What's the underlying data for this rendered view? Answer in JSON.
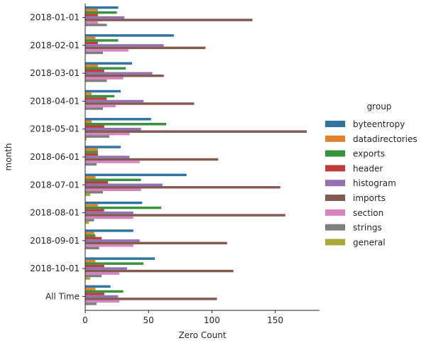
{
  "chart_data": {
    "type": "bar",
    "orientation": "horizontal",
    "title": "",
    "xlabel": "Zero Count",
    "ylabel": "month",
    "xlim": [
      0,
      185
    ],
    "xticks": [
      0,
      50,
      100,
      150
    ],
    "grid": false,
    "legend_title": "group",
    "legend_position": "right",
    "categories": [
      "2018-01-01",
      "2018-02-01",
      "2018-03-01",
      "2018-04-01",
      "2018-05-01",
      "2018-06-01",
      "2018-07-01",
      "2018-08-01",
      "2018-09-01",
      "2018-10-01",
      "All Time"
    ],
    "series": [
      {
        "name": "byteentropy",
        "color": "#3274a1",
        "values": [
          26,
          70,
          37,
          28,
          52,
          28,
          80,
          45,
          38,
          55,
          20
        ]
      },
      {
        "name": "datadirectories",
        "color": "#e1812c",
        "values": [
          10,
          8,
          10,
          5,
          5,
          10,
          8,
          10,
          7,
          8,
          8
        ]
      },
      {
        "name": "exports",
        "color": "#3a923a",
        "values": [
          25,
          26,
          32,
          23,
          64,
          10,
          44,
          60,
          8,
          46,
          30
        ]
      },
      {
        "name": "header",
        "color": "#c03d3e",
        "values": [
          10,
          10,
          15,
          17,
          15,
          10,
          18,
          15,
          13,
          15,
          15
        ]
      },
      {
        "name": "histogram",
        "color": "#9372b2",
        "values": [
          31,
          62,
          53,
          46,
          44,
          35,
          61,
          38,
          43,
          33,
          26
        ]
      },
      {
        "name": "imports",
        "color": "#845b53",
        "values": [
          132,
          95,
          62,
          86,
          175,
          105,
          154,
          158,
          112,
          117,
          104
        ]
      },
      {
        "name": "section",
        "color": "#d684bd",
        "values": [
          10,
          34,
          30,
          24,
          35,
          43,
          44,
          38,
          38,
          27,
          27
        ]
      },
      {
        "name": "strings",
        "color": "#7f7f7f",
        "values": [
          17,
          14,
          17,
          14,
          19,
          9,
          14,
          7,
          11,
          13,
          9
        ]
      },
      {
        "name": "general",
        "color": "#a9aa35",
        "values": [
          0,
          0,
          0,
          0,
          1,
          0,
          4,
          3,
          0,
          4,
          0
        ]
      }
    ]
  }
}
